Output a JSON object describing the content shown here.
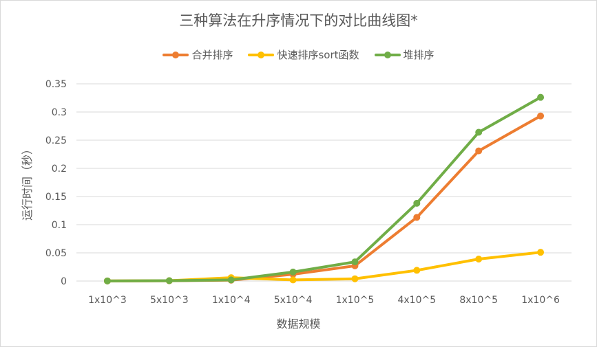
{
  "chart_data": {
    "type": "line",
    "title": "三种算法在升序情况下的对比曲线图*",
    "xlabel": "数据规模",
    "ylabel": "运行时间（秒）",
    "categories": [
      "1x10^3",
      "5x10^3",
      "1x10^4",
      "5x10^4",
      "1x10^5",
      "4x10^5",
      "8x10^5",
      "1x10^6"
    ],
    "ylim": [
      0,
      0.35
    ],
    "yticks": [
      "0",
      "0.05",
      "0.1",
      "0.15",
      "0.2",
      "0.25",
      "0.3",
      "0.35"
    ],
    "ytick_values": [
      0,
      0.05,
      0.1,
      0.15,
      0.2,
      0.25,
      0.3,
      0.35
    ],
    "grid": true,
    "legend_position": "top",
    "series": [
      {
        "name": "合并排序",
        "color": "#ED7D31",
        "values": [
          0.0002,
          0.0005,
          0.0015,
          0.012,
          0.027,
          0.113,
          0.231,
          0.293
        ]
      },
      {
        "name": "快速排序sort函数",
        "color": "#FFC000",
        "values": [
          0.0002,
          0.0006,
          0.006,
          0.002,
          0.004,
          0.019,
          0.039,
          0.051
        ]
      },
      {
        "name": "堆排序",
        "color": "#70AD47",
        "values": [
          0.0002,
          0.0006,
          0.002,
          0.016,
          0.034,
          0.138,
          0.264,
          0.326
        ]
      }
    ]
  }
}
